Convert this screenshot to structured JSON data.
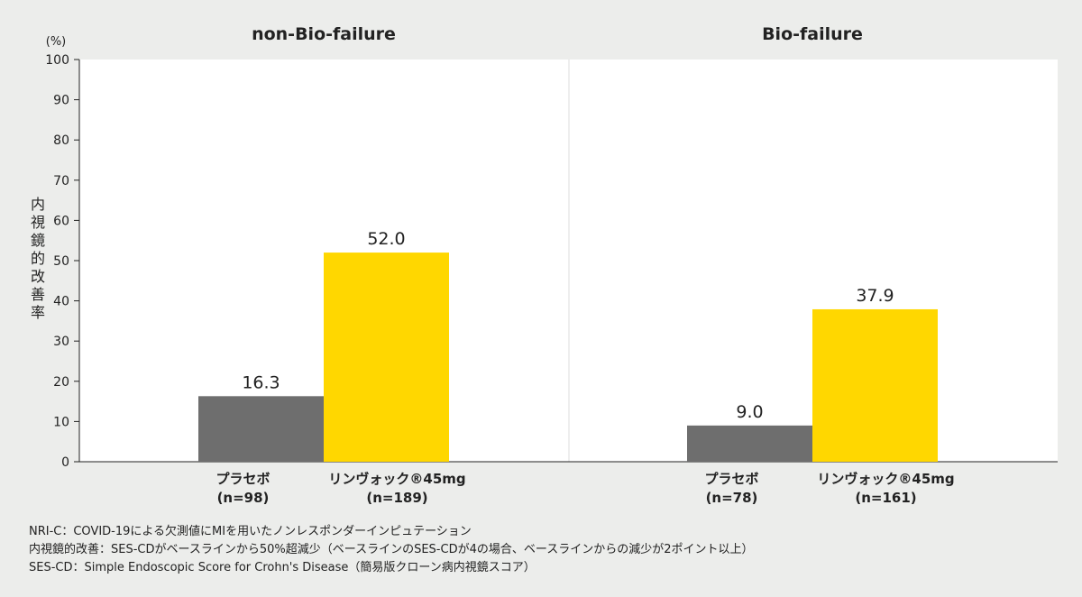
{
  "chart_data": {
    "type": "bar",
    "unit_label": "(%)",
    "ylabel": "内視鏡的改善率",
    "ylim": [
      0,
      100
    ],
    "yticks": [
      0,
      10,
      20,
      30,
      40,
      50,
      60,
      70,
      80,
      90,
      100
    ],
    "grid": false,
    "colors": {
      "placebo": "#6e6e6e",
      "treatment": "#ffd700"
    },
    "panels": [
      {
        "title": "non-Bio-failure",
        "bars": [
          {
            "label": "プラセボ",
            "n": "(n=98)",
            "value": 16.3,
            "value_label": "16.3",
            "series": "placebo"
          },
          {
            "label": "リンヴォック®45mg",
            "n": "(n=189)",
            "value": 52.0,
            "value_label": "52.0",
            "series": "treatment"
          }
        ]
      },
      {
        "title": "Bio-failure",
        "bars": [
          {
            "label": "プラセボ",
            "n": "(n=78)",
            "value": 9.0,
            "value_label": "9.0",
            "series": "placebo"
          },
          {
            "label": "リンヴォック®45mg",
            "n": "(n=161)",
            "value": 37.9,
            "value_label": "37.9",
            "series": "treatment"
          }
        ]
      }
    ]
  },
  "footnotes": [
    "NRI-C：COVID-19による欠測値にMIを用いたノンレスポンダーインピュテーション",
    "内視鏡的改善：SES-CDがベースラインから50%超減少（ベースラインのSES-CDが4の場合、ベースラインからの減少が2ポイント以上）",
    "SES-CD：Simple Endoscopic Score for Crohn's Disease（簡易版クローン病内視鏡スコア）"
  ]
}
